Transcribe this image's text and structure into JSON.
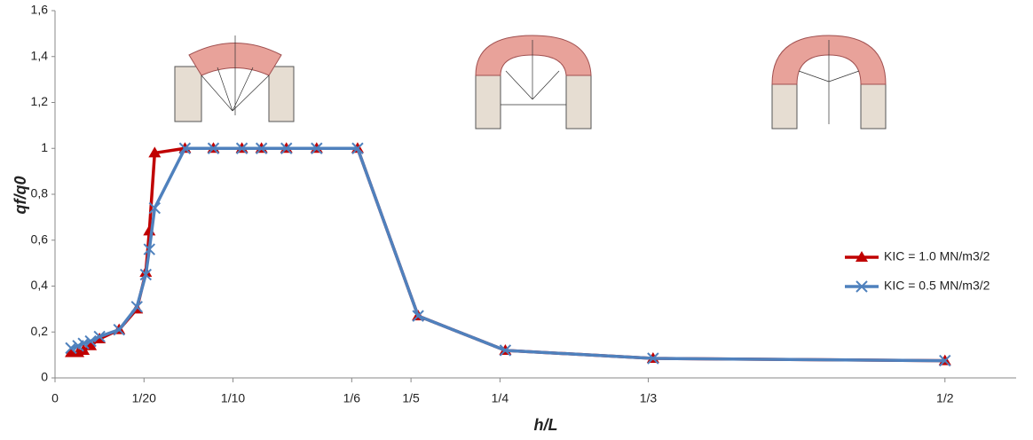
{
  "chart_data": {
    "type": "line",
    "x_label": "h/L",
    "y_label": "qf/q0",
    "x": [
      0.009,
      0.013,
      0.016,
      0.02,
      0.025,
      0.036,
      0.046,
      0.051,
      0.053,
      0.056,
      0.073,
      0.089,
      0.105,
      0.116,
      0.13,
      0.147,
      0.17,
      0.204,
      0.253,
      0.336,
      0.5
    ],
    "series": [
      {
        "name": "KIC = 1.0 MN/m3/2",
        "color": "#c00000",
        "marker": "triangle",
        "values": [
          0.11,
          0.11,
          0.12,
          0.14,
          0.17,
          0.21,
          0.3,
          0.46,
          0.64,
          0.98,
          1,
          1,
          1,
          1,
          1,
          1,
          1,
          0.27,
          0.12,
          0.085,
          0.075
        ]
      },
      {
        "name": "KIC = 0.5 MN/m3/2",
        "color": "#4f81bd",
        "marker": "x",
        "values": [
          0.13,
          0.14,
          0.15,
          0.16,
          0.18,
          0.21,
          0.31,
          0.45,
          0.56,
          0.74,
          1,
          1,
          1,
          1,
          1,
          1,
          1,
          0.27,
          0.12,
          0.085,
          0.075
        ]
      }
    ],
    "xlim": [
      0,
      0.54
    ],
    "xticks": [
      0,
      {
        "value": 0.05,
        "label": "1/20"
      },
      {
        "value": 0.1,
        "label": "1/10"
      },
      {
        "value": 0.1667,
        "label": "1/6"
      },
      {
        "value": 0.2,
        "label": "1/5"
      },
      {
        "value": 0.25,
        "label": "1/4"
      },
      {
        "value": 0.3333,
        "label": "1/3"
      },
      {
        "value": 0.5,
        "label": "1/2"
      }
    ],
    "ylim": [
      0,
      1.6
    ],
    "yticks": [
      0,
      {
        "value": 0.2,
        "label": "0,2"
      },
      {
        "value": 0.4,
        "label": "0,4"
      },
      {
        "value": 0.6,
        "label": "0,6"
      },
      {
        "value": 0.8,
        "label": "0,8"
      },
      1,
      {
        "value": 1.2,
        "label": "1,2"
      },
      {
        "value": 1.4,
        "label": "1,4"
      },
      {
        "value": 1.6,
        "label": "1,6"
      }
    ],
    "grid": false,
    "legend": "right"
  }
}
